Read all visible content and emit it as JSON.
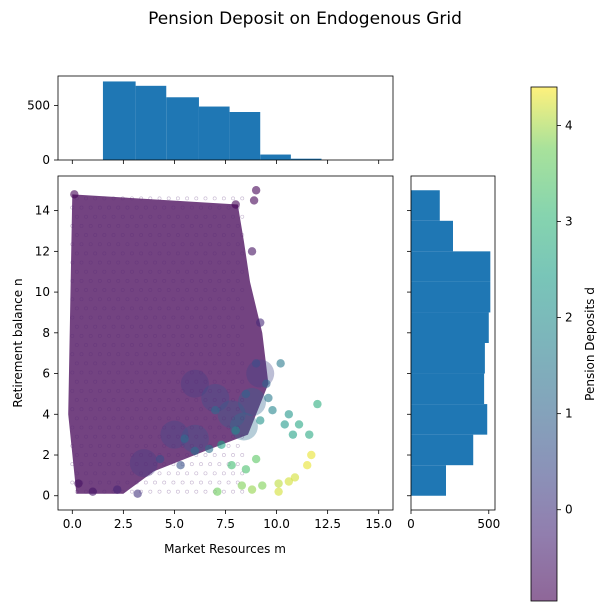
{
  "title": "Pension Deposit on Endogenous Grid",
  "chart_data": [
    {
      "name": "scatter",
      "type": "scatter",
      "xlabel": "Market Resources m",
      "ylabel": "Retirement balance n",
      "xlim": [
        -0.7,
        15.7
      ],
      "ylim": [
        -0.7,
        15.7
      ],
      "xticks": [
        "0.0",
        "2.5",
        "5.0",
        "7.5",
        "10.0",
        "12.5",
        "15.0"
      ],
      "xtick_values": [
        0,
        2.5,
        5,
        7.5,
        10,
        12.5,
        15
      ],
      "yticks": [
        "0",
        "2",
        "4",
        "6",
        "8",
        "10",
        "12",
        "14"
      ],
      "ytick_values": [
        0,
        2,
        4,
        6,
        8,
        10,
        12,
        14
      ],
      "colormap": "viridis",
      "alpha": 0.6,
      "points": [
        {
          "x": 0.1,
          "y": 14.8,
          "d": -0.9
        },
        {
          "x": 8.0,
          "y": 14.3,
          "d": -0.9
        },
        {
          "x": 9.0,
          "y": 15.0,
          "d": -0.9
        },
        {
          "x": 8.9,
          "y": 14.5,
          "d": -0.9
        },
        {
          "x": 8.8,
          "y": 12.0,
          "d": -0.7
        },
        {
          "x": 9.2,
          "y": 8.5,
          "d": -0.2
        },
        {
          "x": 10.2,
          "y": 6.5,
          "d": 1.5
        },
        {
          "x": 9.5,
          "y": 5.5,
          "d": 1.0
        },
        {
          "x": 9.6,
          "y": 4.8,
          "d": 1.5
        },
        {
          "x": 9.8,
          "y": 4.2,
          "d": 1.8
        },
        {
          "x": 10.6,
          "y": 4.0,
          "d": 2.2
        },
        {
          "x": 11.1,
          "y": 3.5,
          "d": 2.6
        },
        {
          "x": 11.6,
          "y": 3.0,
          "d": 2.7
        },
        {
          "x": 12.0,
          "y": 4.5,
          "d": 2.8
        },
        {
          "x": 10.8,
          "y": 3.0,
          "d": 2.5
        },
        {
          "x": 9.2,
          "y": 3.7,
          "d": 2.1
        },
        {
          "x": 10.4,
          "y": 3.5,
          "d": 2.3
        },
        {
          "x": 8.0,
          "y": 3.2,
          "d": 1.9
        },
        {
          "x": 7.3,
          "y": 2.5,
          "d": 2.5
        },
        {
          "x": 7.8,
          "y": 1.5,
          "d": 3.2
        },
        {
          "x": 8.5,
          "y": 1.3,
          "d": 3.3
        },
        {
          "x": 7.1,
          "y": 0.2,
          "d": 3.7
        },
        {
          "x": 8.3,
          "y": 0.5,
          "d": 3.8
        },
        {
          "x": 8.8,
          "y": 0.3,
          "d": 3.9
        },
        {
          "x": 9.3,
          "y": 0.5,
          "d": 3.8
        },
        {
          "x": 10.1,
          "y": 0.2,
          "d": 4.2
        },
        {
          "x": 10.1,
          "y": 0.6,
          "d": 4.1
        },
        {
          "x": 10.6,
          "y": 0.7,
          "d": 4.2
        },
        {
          "x": 10.9,
          "y": 0.9,
          "d": 4.2
        },
        {
          "x": 11.5,
          "y": 1.5,
          "d": 4.3
        },
        {
          "x": 11.7,
          "y": 2.0,
          "d": 4.3
        },
        {
          "x": 9.0,
          "y": 1.8,
          "d": 3.5
        },
        {
          "x": 6.7,
          "y": 2.3,
          "d": 1.3
        },
        {
          "x": 6.0,
          "y": 2.2,
          "d": 1.2
        },
        {
          "x": 5.3,
          "y": 1.5,
          "d": 0.6
        },
        {
          "x": 5.5,
          "y": 2.8,
          "d": 1.1
        },
        {
          "x": 4.3,
          "y": 1.8,
          "d": 0.5
        },
        {
          "x": 3.2,
          "y": 0.1,
          "d": 0.0
        },
        {
          "x": 2.2,
          "y": 0.3,
          "d": -0.3
        },
        {
          "x": 1.0,
          "y": 0.2,
          "d": -0.6
        },
        {
          "x": 0.3,
          "y": 0.6,
          "d": -0.7
        },
        {
          "x": 7.0,
          "y": 4.2,
          "d": 1.1
        },
        {
          "x": 8.5,
          "y": 5.0,
          "d": 0.9
        },
        {
          "x": 9.0,
          "y": 6.5,
          "d": 0.5
        }
      ],
      "dense_region": "points densely cover 0 ≤ m ≤ 9 and 0 ≤ n ≤ 15; deposits d near -0.9 at low n and high n, rising toward the lower-right edge",
      "colorbar": {
        "label": "Pension Deposits d",
        "ticks": [
          "0",
          "1",
          "2",
          "3",
          "4"
        ],
        "tick_values": [
          0,
          1,
          2,
          3,
          4
        ],
        "range": [
          -0.95,
          4.4
        ]
      }
    },
    {
      "name": "histogram-m",
      "type": "bar",
      "orientation": "vertical",
      "edges": [
        1.5,
        3.1,
        4.6,
        6.2,
        7.7,
        9.2,
        10.7,
        12.2,
        13.7,
        15.2
      ],
      "values": [
        720,
        680,
        575,
        490,
        440,
        50,
        12,
        0,
        0
      ],
      "yticks": [
        "0",
        "500"
      ],
      "ytick_values": [
        0,
        500
      ],
      "ylim": [
        0,
        770
      ],
      "color": "#1f77b4"
    },
    {
      "name": "histogram-n",
      "type": "bar",
      "orientation": "horizontal",
      "edges": [
        0,
        1.5,
        3.0,
        4.5,
        6.0,
        7.5,
        9.0,
        10.5,
        12.0,
        13.5,
        15.0
      ],
      "values": [
        225,
        400,
        490,
        470,
        475,
        500,
        510,
        510,
        270,
        185
      ],
      "xticks": [
        "0",
        "500"
      ],
      "xtick_values": [
        0,
        500
      ],
      "xlim": [
        0,
        540
      ],
      "color": "#1f77b4"
    }
  ]
}
